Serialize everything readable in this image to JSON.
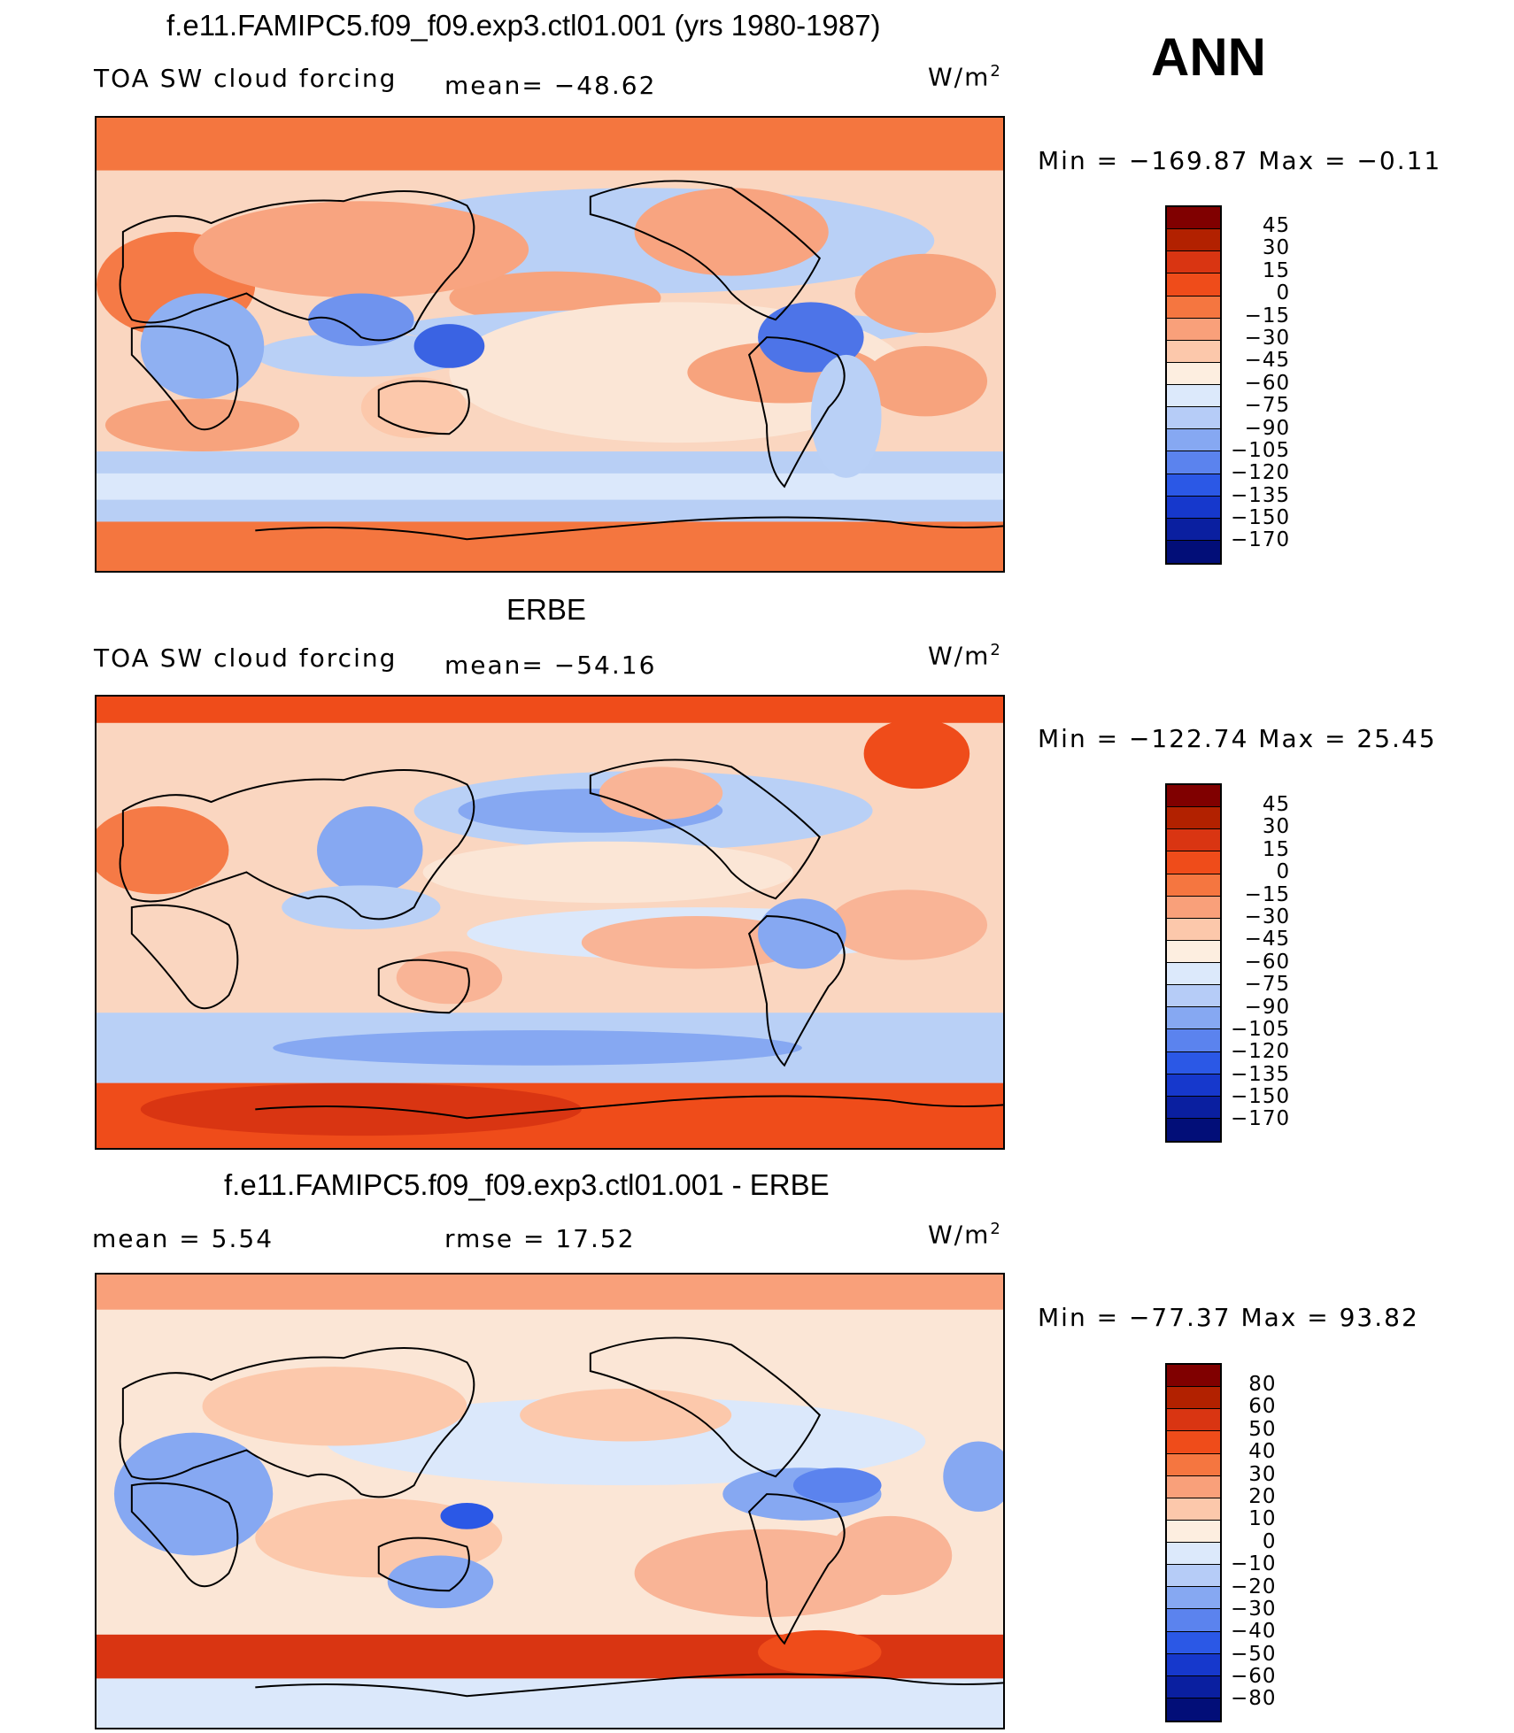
{
  "season": "ANN",
  "units_text": "W/m",
  "units_sup": "2",
  "colors": {
    "ocean_base": "#fbe0cf",
    "coast": "#000000"
  },
  "panels": [
    {
      "title": "f.e11.FAMIPC5.f09_f09.exp3.ctl01.001 (yrs 1980-1987)",
      "label": "TOA SW cloud forcing",
      "stat1": "mean=  −48.62",
      "stat2": "",
      "minmax": "Min  =  −169.87  Max  =    −0.11",
      "levels": [
        "45",
        "30",
        "15",
        "0",
        "−15",
        "−30",
        "−45",
        "−60",
        "−75",
        "−90",
        "−105",
        "−120",
        "−135",
        "−150",
        "−170"
      ]
    },
    {
      "title": "ERBE",
      "label": "TOA SW cloud forcing",
      "stat1": "mean=  −54.16",
      "stat2": "",
      "minmax": "Min  =  −122.74  Max  =    25.45",
      "levels": [
        "45",
        "30",
        "15",
        "0",
        "−15",
        "−30",
        "−45",
        "−60",
        "−75",
        "−90",
        "−105",
        "−120",
        "−135",
        "−150",
        "−170"
      ]
    },
    {
      "title": "f.e11.FAMIPC5.f09_f09.exp3.ctl01.001 - ERBE",
      "label": "mean  =      5.54",
      "stat1": "rmse  =     17.52",
      "stat2": "",
      "minmax": "Min  =  −77.37  Max  =    93.82",
      "levels": [
        "80",
        "60",
        "50",
        "40",
        "30",
        "20",
        "10",
        "0",
        "−10",
        "−20",
        "−30",
        "−40",
        "−50",
        "−60",
        "−80"
      ]
    }
  ],
  "colorbar_colors": [
    "#800000",
    "#b22100",
    "#d93512",
    "#ef4c1a",
    "#f57640",
    "#f9a07a",
    "#fcc8ab",
    "#fdeee0",
    "#dce9fb",
    "#b6ccf7",
    "#86a8f2",
    "#5b83ee",
    "#2b58e6",
    "#1638cc",
    "#0a1fa0",
    "#020e78"
  ]
}
